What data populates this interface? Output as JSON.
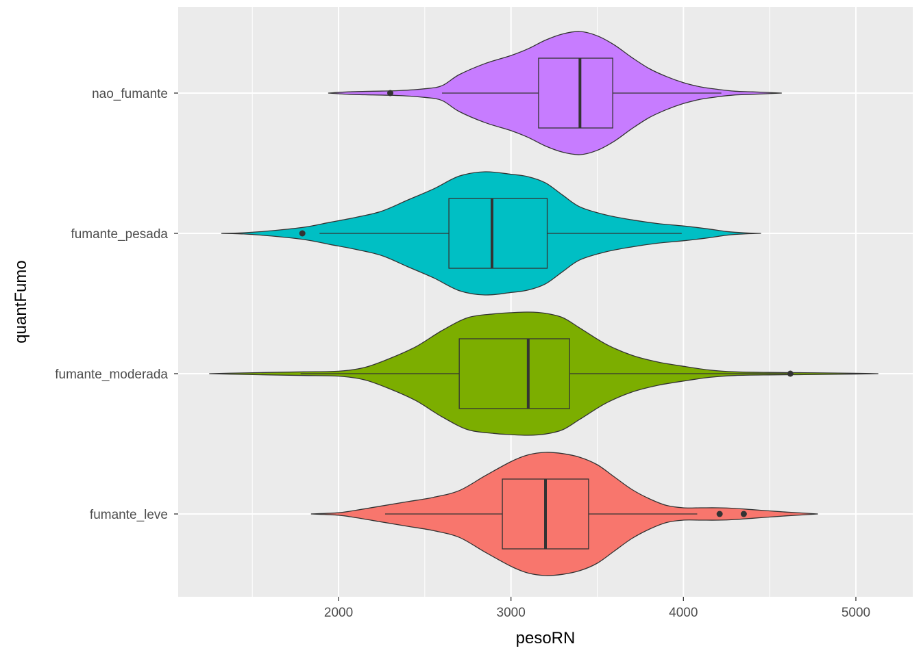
{
  "chart_data": {
    "type": "violin",
    "title": "",
    "xlabel": "pesoRN",
    "ylabel": "quantFumo",
    "xlim": [
      1070,
      5330
    ],
    "x_ticks": [
      2000,
      3000,
      4000,
      5000
    ],
    "x_tick_labels": [
      "2000",
      "3000",
      "4000",
      "5000"
    ],
    "grid": true,
    "colors": {
      "panel": "#ebebeb",
      "grid": "#ffffff",
      "outline": "#333333"
    },
    "categories": [
      "nao_fumante",
      "fumante_pesada",
      "fumante_moderada",
      "fumante_leve"
    ],
    "groups": [
      {
        "name": "nao_fumante",
        "fill": "#c77cff",
        "box": {
          "q1": 3160,
          "median": 3400,
          "q3": 3590,
          "whisker_low": 2600,
          "whisker_high": 4220
        },
        "outliers": [
          2300
        ],
        "density": [
          [
            1940,
            0.0
          ],
          [
            2060,
            0.02
          ],
          [
            2200,
            0.03
          ],
          [
            2350,
            0.04
          ],
          [
            2500,
            0.07
          ],
          [
            2600,
            0.12
          ],
          [
            2700,
            0.3
          ],
          [
            2850,
            0.48
          ],
          [
            3000,
            0.61
          ],
          [
            3100,
            0.72
          ],
          [
            3200,
            0.86
          ],
          [
            3300,
            0.96
          ],
          [
            3400,
            1.0
          ],
          [
            3500,
            0.93
          ],
          [
            3600,
            0.78
          ],
          [
            3700,
            0.58
          ],
          [
            3800,
            0.4
          ],
          [
            3900,
            0.27
          ],
          [
            4000,
            0.17
          ],
          [
            4100,
            0.1
          ],
          [
            4200,
            0.06
          ],
          [
            4300,
            0.03
          ],
          [
            4400,
            0.02
          ],
          [
            4570,
            0.0
          ]
        ]
      },
      {
        "name": "fumante_pesada",
        "fill": "#00bfc4",
        "box": {
          "q1": 2640,
          "median": 2890,
          "q3": 3210,
          "whisker_low": 1890,
          "whisker_high": 3990
        },
        "outliers": [
          1790
        ],
        "density": [
          [
            1320,
            0.0
          ],
          [
            1450,
            0.01
          ],
          [
            1600,
            0.04
          ],
          [
            1800,
            0.1
          ],
          [
            1950,
            0.18
          ],
          [
            2100,
            0.26
          ],
          [
            2250,
            0.36
          ],
          [
            2400,
            0.54
          ],
          [
            2550,
            0.72
          ],
          [
            2700,
            0.93
          ],
          [
            2850,
            1.0
          ],
          [
            3000,
            0.96
          ],
          [
            3100,
            0.92
          ],
          [
            3200,
            0.82
          ],
          [
            3300,
            0.62
          ],
          [
            3400,
            0.43
          ],
          [
            3550,
            0.3
          ],
          [
            3700,
            0.22
          ],
          [
            3850,
            0.16
          ],
          [
            4000,
            0.12
          ],
          [
            4150,
            0.07
          ],
          [
            4250,
            0.03
          ],
          [
            4350,
            0.01
          ],
          [
            4450,
            0.0
          ]
        ]
      },
      {
        "name": "fumante_moderada",
        "fill": "#7cae00",
        "box": {
          "q1": 2700,
          "median": 3100,
          "q3": 3340,
          "whisker_low": 1780,
          "whisker_high": 4600
        },
        "outliers": [
          4620
        ],
        "density": [
          [
            1250,
            0.0
          ],
          [
            1400,
            0.01
          ],
          [
            1600,
            0.02
          ],
          [
            1800,
            0.03
          ],
          [
            2000,
            0.04
          ],
          [
            2150,
            0.1
          ],
          [
            2300,
            0.25
          ],
          [
            2450,
            0.44
          ],
          [
            2600,
            0.7
          ],
          [
            2750,
            0.91
          ],
          [
            2900,
            0.97
          ],
          [
            3000,
            0.99
          ],
          [
            3100,
            1.0
          ],
          [
            3200,
            0.98
          ],
          [
            3300,
            0.91
          ],
          [
            3400,
            0.74
          ],
          [
            3550,
            0.48
          ],
          [
            3700,
            0.3
          ],
          [
            3850,
            0.19
          ],
          [
            4000,
            0.12
          ],
          [
            4150,
            0.06
          ],
          [
            4300,
            0.03
          ],
          [
            4500,
            0.02
          ],
          [
            4700,
            0.015
          ],
          [
            4900,
            0.01
          ],
          [
            5130,
            0.0
          ]
        ]
      },
      {
        "name": "fumante_leve",
        "fill": "#f8766d",
        "box": {
          "q1": 2950,
          "median": 3200,
          "q3": 3450,
          "whisker_low": 2270,
          "whisker_high": 4080
        },
        "outliers": [
          4210,
          4350
        ],
        "density": [
          [
            1840,
            0.0
          ],
          [
            2000,
            0.02
          ],
          [
            2100,
            0.06
          ],
          [
            2250,
            0.13
          ],
          [
            2400,
            0.2
          ],
          [
            2550,
            0.27
          ],
          [
            2700,
            0.38
          ],
          [
            2850,
            0.62
          ],
          [
            3000,
            0.85
          ],
          [
            3100,
            0.96
          ],
          [
            3200,
            1.0
          ],
          [
            3300,
            0.98
          ],
          [
            3400,
            0.92
          ],
          [
            3500,
            0.8
          ],
          [
            3600,
            0.6
          ],
          [
            3700,
            0.4
          ],
          [
            3800,
            0.25
          ],
          [
            3900,
            0.14
          ],
          [
            4000,
            0.1
          ],
          [
            4100,
            0.1
          ],
          [
            4200,
            0.1
          ],
          [
            4300,
            0.09
          ],
          [
            4400,
            0.07
          ],
          [
            4500,
            0.05
          ],
          [
            4600,
            0.03
          ],
          [
            4780,
            0.0
          ]
        ]
      }
    ]
  }
}
